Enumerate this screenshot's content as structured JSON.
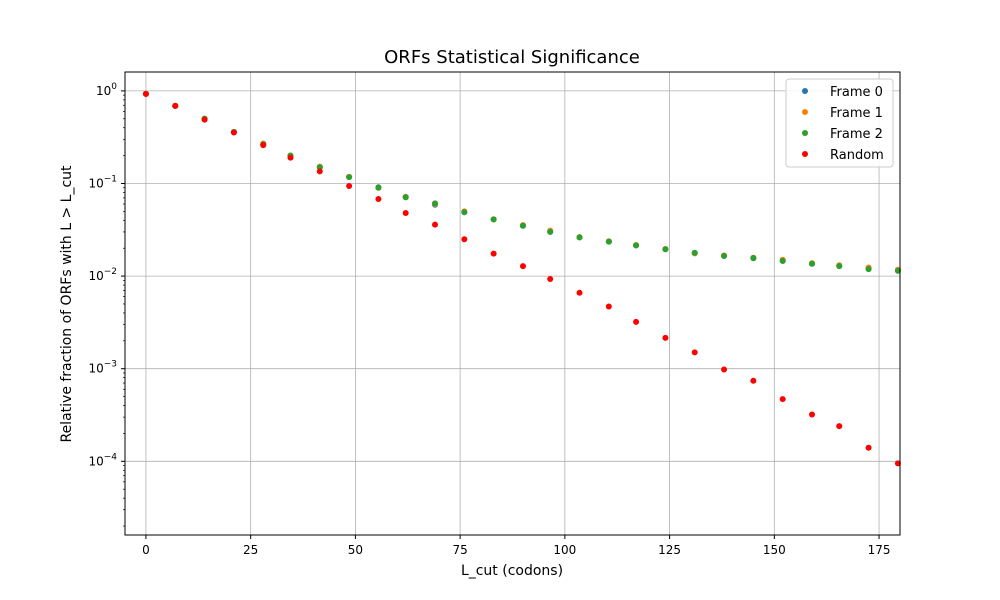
{
  "chart_data": {
    "type": "scatter",
    "title": "ORFs Statistical Significance",
    "xlabel": "L_cut (codons)",
    "ylabel": "Relative fraction of ORFs with L > L_cut",
    "xlim": [
      -5,
      180
    ],
    "ylim": [
      1.6e-05,
      1.6
    ],
    "yscale": "log",
    "grid": true,
    "legend_position": "top-right",
    "x_ticks": [
      0,
      25,
      50,
      75,
      100,
      125,
      150,
      175
    ],
    "x_tick_labels": [
      "0",
      "25",
      "50",
      "75",
      "100",
      "125",
      "150",
      "175"
    ],
    "y_ticks": [
      1,
      0.1,
      0.01,
      0.001,
      0.0001
    ],
    "y_tick_labels": [
      {
        "base": "10",
        "exp": "0"
      },
      {
        "base": "10",
        "exp": "−1"
      },
      {
        "base": "10",
        "exp": "−2"
      },
      {
        "base": "10",
        "exp": "−3"
      },
      {
        "base": "10",
        "exp": "−4"
      }
    ],
    "x": [
      0,
      7,
      14,
      21,
      28,
      34.5,
      41.5,
      48.5,
      55.5,
      62,
      69,
      76,
      83,
      90,
      96.5,
      103.5,
      110.5,
      117,
      124,
      131,
      138,
      145,
      152,
      159,
      165.5,
      172.5,
      179.5
    ],
    "series": [
      {
        "name": "Frame 0",
        "color": "#1f77b4",
        "values": [
          0.93,
          0.69,
          0.5,
          0.36,
          0.265,
          0.2,
          0.15,
          0.118,
          0.091,
          0.071,
          0.059,
          0.049,
          0.041,
          0.035,
          0.03,
          0.0262,
          0.0236,
          0.0215,
          0.0195,
          0.0178,
          0.0166,
          0.0156,
          0.0146,
          0.0136,
          0.0129,
          0.0121,
          0.0115
        ]
      },
      {
        "name": "Frame 1",
        "color": "#ff7f0e",
        "values": [
          0.93,
          0.69,
          0.5,
          0.36,
          0.27,
          0.2,
          0.152,
          0.118,
          0.09,
          0.072,
          0.06,
          0.05,
          0.041,
          0.0355,
          0.031,
          0.0264,
          0.0238,
          0.0217,
          0.0196,
          0.0176,
          0.0167,
          0.0158,
          0.015,
          0.0138,
          0.0131,
          0.0124,
          0.0117
        ]
      },
      {
        "name": "Frame 2",
        "color": "#2ca02c",
        "values": [
          0.93,
          0.69,
          0.5,
          0.36,
          0.265,
          0.2,
          0.15,
          0.117,
          0.09,
          0.071,
          0.061,
          0.049,
          0.041,
          0.035,
          0.03,
          0.0262,
          0.0236,
          0.0215,
          0.0195,
          0.0178,
          0.0165,
          0.0157,
          0.0146,
          0.0136,
          0.0128,
          0.0119,
          0.0114
        ]
      },
      {
        "name": "Random",
        "color": "#ff0000",
        "values": [
          0.93,
          0.69,
          0.49,
          0.355,
          0.26,
          0.19,
          0.135,
          0.094,
          0.068,
          0.048,
          0.036,
          0.025,
          0.0175,
          0.0128,
          0.0093,
          0.0066,
          0.0047,
          0.0032,
          0.00215,
          0.0015,
          0.00098,
          0.00074,
          0.00047,
          0.00032,
          0.00024,
          0.00014,
          9.5e-05
        ]
      }
    ]
  }
}
